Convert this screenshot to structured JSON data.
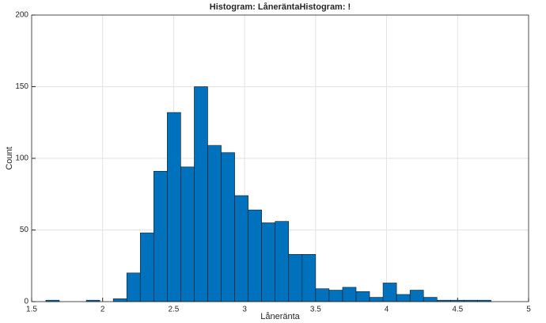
{
  "chart_data": {
    "type": "histogram",
    "title": "Histogram: LåneräntaHistogram: !",
    "xlabel": "Låneränta",
    "ylabel": "Count",
    "bins": [
      1.6,
      1.695,
      1.79,
      1.885,
      1.98,
      2.075,
      2.17,
      2.265,
      2.36,
      2.455,
      2.55,
      2.645,
      2.74,
      2.835,
      2.93,
      3.025,
      3.12,
      3.215,
      3.31,
      3.405,
      3.5,
      3.595,
      3.69,
      3.785,
      3.88,
      3.975,
      4.07,
      4.165,
      4.26,
      4.355,
      4.45,
      4.545,
      4.64,
      4.735
    ],
    "values": [
      1,
      0,
      0,
      1,
      0,
      2,
      20,
      48,
      91,
      132,
      94,
      150,
      109,
      104,
      74,
      64,
      55,
      56,
      33,
      33,
      9,
      8,
      10,
      7,
      3,
      13,
      5,
      8,
      3,
      1,
      1,
      1,
      1
    ],
    "color": "#0072bd",
    "xlim": [
      1.5,
      5
    ],
    "xticks": [
      1.5,
      2,
      2.5,
      3,
      3.5,
      4,
      4.5,
      5
    ],
    "ylim": [
      0,
      200
    ],
    "yticks": [
      0,
      50,
      100,
      150,
      200
    ],
    "grid": true
  }
}
